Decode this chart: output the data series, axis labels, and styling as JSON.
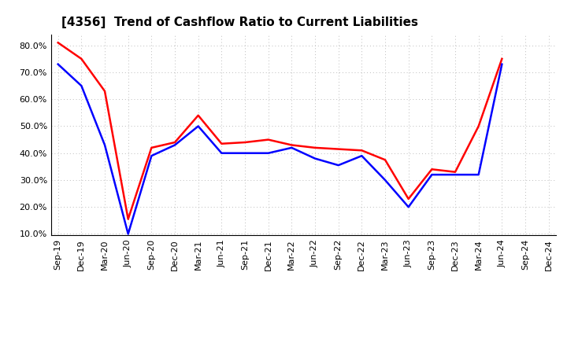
{
  "title": "[4356]  Trend of Cashflow Ratio to Current Liabilities",
  "x_labels": [
    "Sep-19",
    "Dec-19",
    "Mar-20",
    "Jun-20",
    "Sep-20",
    "Dec-20",
    "Mar-21",
    "Jun-21",
    "Sep-21",
    "Dec-21",
    "Mar-22",
    "Jun-22",
    "Sep-22",
    "Dec-22",
    "Mar-23",
    "Jun-23",
    "Sep-23",
    "Dec-23",
    "Mar-24",
    "Jun-24",
    "Sep-24",
    "Dec-24"
  ],
  "operating_cf": [
    0.81,
    0.75,
    0.63,
    0.155,
    0.42,
    0.44,
    0.54,
    0.435,
    0.44,
    0.45,
    0.43,
    0.42,
    0.415,
    0.41,
    0.375,
    0.23,
    0.34,
    0.33,
    0.5,
    0.75,
    null,
    null
  ],
  "free_cf": [
    0.73,
    0.65,
    0.43,
    0.1,
    0.39,
    0.43,
    0.5,
    0.4,
    0.4,
    0.4,
    0.42,
    0.38,
    0.355,
    0.39,
    0.3,
    0.2,
    0.32,
    0.32,
    0.32,
    0.73,
    null,
    null
  ],
  "operating_color": "#ff0000",
  "free_color": "#0000ff",
  "ylim_min": 0.1,
  "ylim_max": 0.84,
  "yticks": [
    0.1,
    0.2,
    0.3,
    0.4,
    0.5,
    0.6,
    0.7,
    0.8
  ],
  "background_color": "#ffffff",
  "grid_color": "#bbbbbb",
  "title_fontsize": 11,
  "legend_fontsize": 9,
  "tick_fontsize": 8
}
